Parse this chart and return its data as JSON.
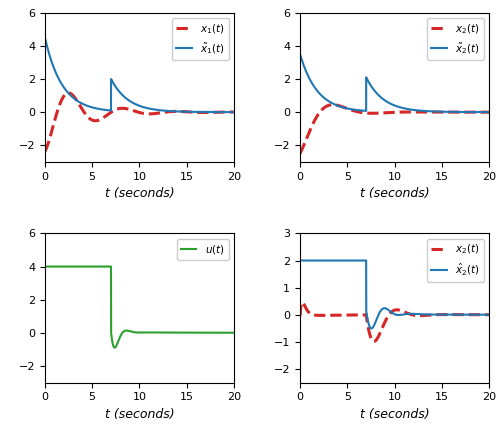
{
  "xlim": [
    0,
    20
  ],
  "xticks": [
    0,
    5,
    10,
    15,
    20
  ],
  "xlabel": "t (seconds)",
  "top_left": {
    "ylim": [
      -3,
      6
    ],
    "yticks": [
      -2,
      0,
      2,
      4,
      6
    ],
    "legend": [
      "$x_1(t)$",
      "$\\tilde{x}_1(t)$"
    ]
  },
  "top_right": {
    "ylim": [
      -3,
      6
    ],
    "yticks": [
      -2,
      0,
      2,
      4,
      6
    ],
    "legend": [
      "$x_2(t)$",
      "$\\tilde{x}_2(t)$"
    ]
  },
  "bottom_left": {
    "ylim": [
      -3,
      6
    ],
    "yticks": [
      -2,
      0,
      2,
      4,
      6
    ],
    "legend": [
      "$u(t)$"
    ]
  },
  "bottom_right": {
    "ylim": [
      -2.5,
      3
    ],
    "yticks": [
      -2,
      -1,
      0,
      1,
      2,
      3
    ],
    "legend": [
      "$x_2(t)$",
      "$\\hat{x}_2(t)$"
    ]
  },
  "red_color": "#d62728",
  "blue_color": "#1f77b4",
  "green_color": "#2ca02c",
  "switch_time": 7.0
}
